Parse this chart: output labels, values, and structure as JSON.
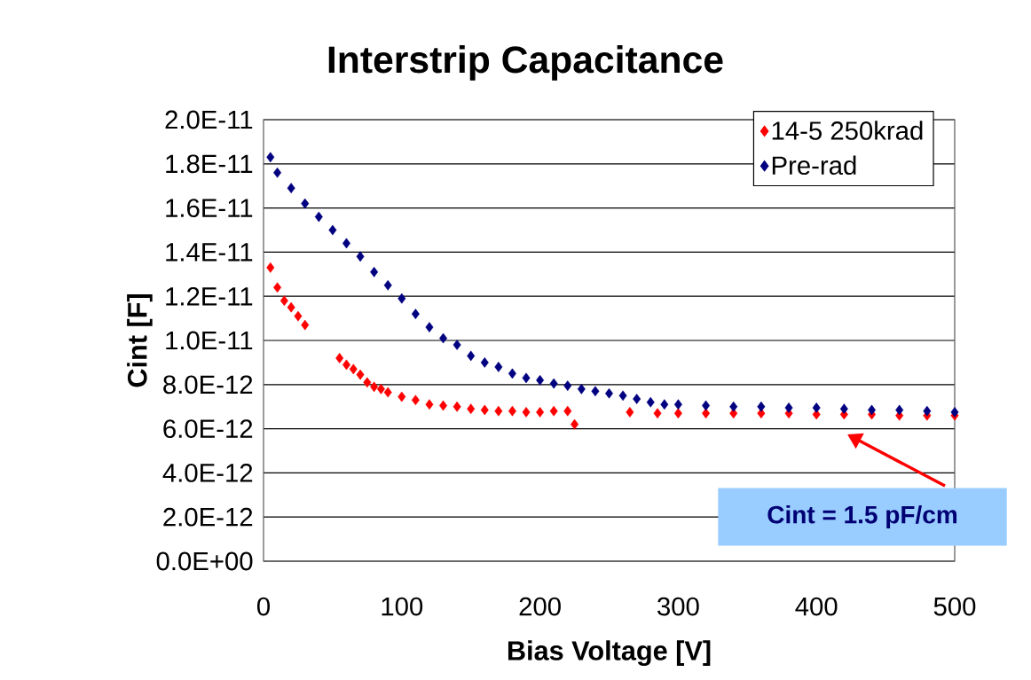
{
  "chart_data": {
    "type": "scatter",
    "title": "Interstrip Capacitance",
    "xlabel": "Bias Voltage [V]",
    "ylabel": "Cint [F]",
    "xlim": [
      0,
      500
    ],
    "xticks": [
      0,
      100,
      200,
      300,
      400,
      500
    ],
    "ylim": [
      0,
      2e-11
    ],
    "yticks": [
      {
        "value": 0,
        "label": "0.0E+00"
      },
      {
        "value": 2e-12,
        "label": "2.0E-12"
      },
      {
        "value": 4e-12,
        "label": "4.0E-12"
      },
      {
        "value": 6e-12,
        "label": "6.0E-12"
      },
      {
        "value": 8e-12,
        "label": "8.0E-12"
      },
      {
        "value": 1e-11,
        "label": "1.0E-11"
      },
      {
        "value": 1.2e-11,
        "label": "1.2E-11"
      },
      {
        "value": 1.4e-11,
        "label": "1.4E-11"
      },
      {
        "value": 1.6e-11,
        "label": "1.6E-11"
      },
      {
        "value": 1.8e-11,
        "label": "1.8E-11"
      },
      {
        "value": 2e-11,
        "label": "2.0E-11"
      }
    ],
    "grid": "y",
    "legend": "top right",
    "marker": "diamond",
    "series": [
      {
        "name": "14-5 250krad",
        "color": "#ff0000",
        "x": [
          5,
          10,
          15,
          20,
          25,
          30,
          55,
          60,
          65,
          70,
          75,
          80,
          85,
          90,
          100,
          110,
          120,
          130,
          140,
          150,
          160,
          170,
          180,
          190,
          200,
          210,
          220,
          225,
          265,
          285,
          300,
          320,
          340,
          360,
          380,
          400,
          420,
          440,
          460,
          480,
          500
        ],
        "values": [
          1.33e-11,
          1.24e-11,
          1.18e-11,
          1.15e-11,
          1.11e-11,
          1.07e-11,
          9.2e-12,
          8.9e-12,
          8.7e-12,
          8.45e-12,
          8.1e-12,
          7.9e-12,
          7.8e-12,
          7.65e-12,
          7.45e-12,
          7.3e-12,
          7.1e-12,
          7.05e-12,
          7e-12,
          6.9e-12,
          6.85e-12,
          6.8e-12,
          6.8e-12,
          6.75e-12,
          6.75e-12,
          6.8e-12,
          6.8e-12,
          6.2e-12,
          6.75e-12,
          6.7e-12,
          6.7e-12,
          6.7e-12,
          6.7e-12,
          6.7e-12,
          6.7e-12,
          6.65e-12,
          6.65e-12,
          6.65e-12,
          6.6e-12,
          6.6e-12,
          6.6e-12
        ]
      },
      {
        "name": "Pre-rad",
        "color": "#000080",
        "x": [
          5,
          10,
          20,
          30,
          40,
          50,
          60,
          70,
          80,
          90,
          100,
          110,
          120,
          130,
          140,
          150,
          160,
          170,
          180,
          190,
          200,
          210,
          220,
          230,
          240,
          250,
          260,
          270,
          280,
          290,
          300,
          320,
          340,
          360,
          380,
          400,
          420,
          440,
          460,
          480,
          500
        ],
        "values": [
          1.83e-11,
          1.76e-11,
          1.69e-11,
          1.62e-11,
          1.56e-11,
          1.5e-11,
          1.44e-11,
          1.38e-11,
          1.31e-11,
          1.25e-11,
          1.19e-11,
          1.12e-11,
          1.06e-11,
          1.01e-11,
          9.8e-12,
          9.3e-12,
          9e-12,
          8.8e-12,
          8.5e-12,
          8.3e-12,
          8.2e-12,
          8.05e-12,
          7.95e-12,
          7.8e-12,
          7.7e-12,
          7.6e-12,
          7.5e-12,
          7.35e-12,
          7.2e-12,
          7.1e-12,
          7.1e-12,
          7.05e-12,
          7e-12,
          7e-12,
          6.95e-12,
          6.95e-12,
          6.9e-12,
          6.85e-12,
          6.85e-12,
          6.8e-12,
          6.75e-12
        ]
      }
    ],
    "annotations": [
      "Cint = 1.5 pF/cm"
    ]
  }
}
